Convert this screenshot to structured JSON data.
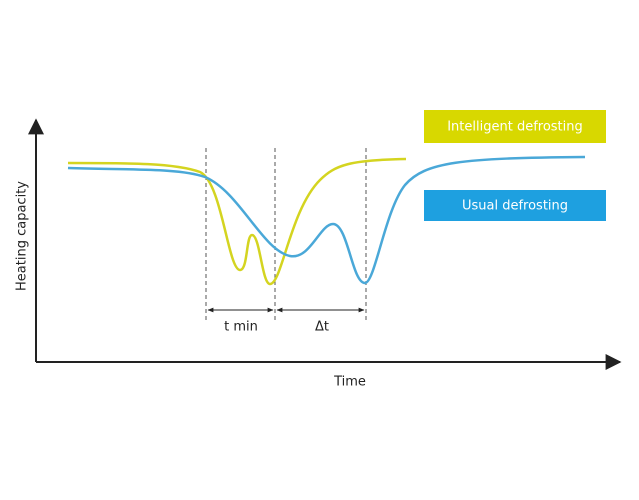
{
  "axes": {
    "y_label": "Heating capacity",
    "x_label": "Time"
  },
  "legend": {
    "items": [
      {
        "label": "Intelligent defrosting"
      },
      {
        "label": "Usual defrosting"
      }
    ]
  },
  "intervals": [
    {
      "label": "t min"
    },
    {
      "label": "Δt"
    }
  ]
}
